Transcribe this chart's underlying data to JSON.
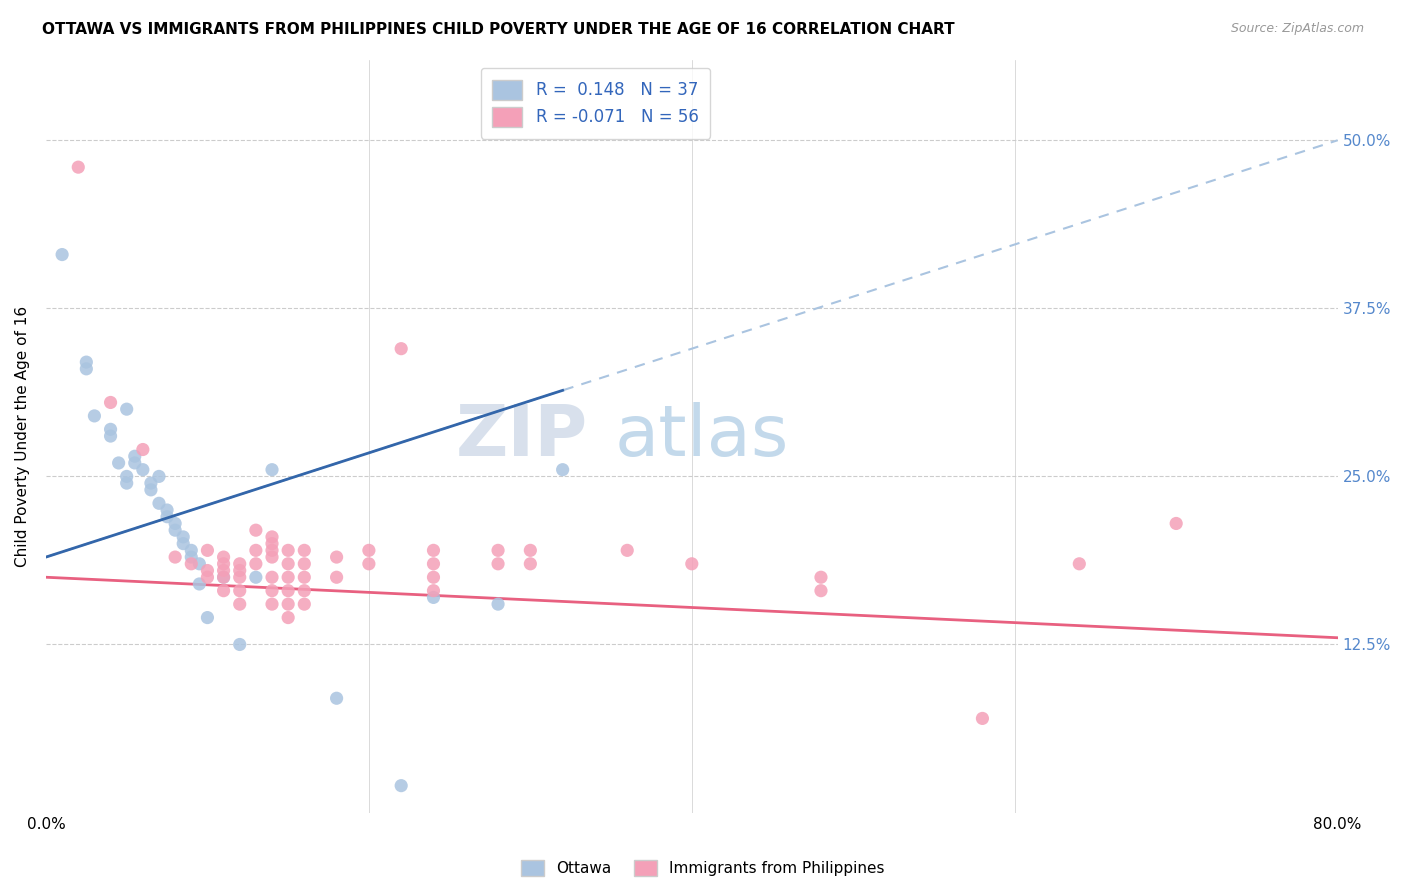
{
  "title": "OTTAWA VS IMMIGRANTS FROM PHILIPPINES CHILD POVERTY UNDER THE AGE OF 16 CORRELATION CHART",
  "source": "Source: ZipAtlas.com",
  "ylabel": "Child Poverty Under the Age of 16",
  "ytick_labels": [
    "50.0%",
    "37.5%",
    "25.0%",
    "12.5%"
  ],
  "ytick_values": [
    0.5,
    0.375,
    0.25,
    0.125
  ],
  "xlim": [
    0.0,
    0.8
  ],
  "ylim": [
    0.0,
    0.56
  ],
  "ottawa_color": "#aac4e0",
  "philippines_color": "#f4a0b8",
  "trendline_ottawa_dashed_color": "#aac4e0",
  "trendline_ottawa_solid_color": "#3366aa",
  "trendline_philippines_color": "#e86080",
  "ottawa_scatter": [
    [
      0.01,
      0.415
    ],
    [
      0.025,
      0.335
    ],
    [
      0.025,
      0.33
    ],
    [
      0.03,
      0.295
    ],
    [
      0.04,
      0.285
    ],
    [
      0.04,
      0.28
    ],
    [
      0.045,
      0.26
    ],
    [
      0.05,
      0.3
    ],
    [
      0.05,
      0.25
    ],
    [
      0.05,
      0.245
    ],
    [
      0.055,
      0.265
    ],
    [
      0.055,
      0.26
    ],
    [
      0.06,
      0.255
    ],
    [
      0.065,
      0.245
    ],
    [
      0.065,
      0.24
    ],
    [
      0.07,
      0.25
    ],
    [
      0.07,
      0.23
    ],
    [
      0.075,
      0.225
    ],
    [
      0.075,
      0.22
    ],
    [
      0.08,
      0.215
    ],
    [
      0.08,
      0.21
    ],
    [
      0.085,
      0.205
    ],
    [
      0.085,
      0.2
    ],
    [
      0.09,
      0.195
    ],
    [
      0.09,
      0.19
    ],
    [
      0.095,
      0.185
    ],
    [
      0.095,
      0.17
    ],
    [
      0.1,
      0.145
    ],
    [
      0.11,
      0.175
    ],
    [
      0.12,
      0.125
    ],
    [
      0.13,
      0.175
    ],
    [
      0.14,
      0.255
    ],
    [
      0.18,
      0.085
    ],
    [
      0.22,
      0.02
    ],
    [
      0.24,
      0.16
    ],
    [
      0.28,
      0.155
    ],
    [
      0.32,
      0.255
    ]
  ],
  "philippines_scatter": [
    [
      0.02,
      0.48
    ],
    [
      0.04,
      0.305
    ],
    [
      0.06,
      0.27
    ],
    [
      0.08,
      0.19
    ],
    [
      0.09,
      0.185
    ],
    [
      0.1,
      0.195
    ],
    [
      0.1,
      0.18
    ],
    [
      0.1,
      0.175
    ],
    [
      0.11,
      0.19
    ],
    [
      0.11,
      0.185
    ],
    [
      0.11,
      0.18
    ],
    [
      0.11,
      0.175
    ],
    [
      0.11,
      0.165
    ],
    [
      0.12,
      0.185
    ],
    [
      0.12,
      0.18
    ],
    [
      0.12,
      0.175
    ],
    [
      0.12,
      0.165
    ],
    [
      0.12,
      0.155
    ],
    [
      0.13,
      0.21
    ],
    [
      0.13,
      0.195
    ],
    [
      0.13,
      0.185
    ],
    [
      0.14,
      0.205
    ],
    [
      0.14,
      0.2
    ],
    [
      0.14,
      0.195
    ],
    [
      0.14,
      0.19
    ],
    [
      0.14,
      0.175
    ],
    [
      0.14,
      0.165
    ],
    [
      0.14,
      0.155
    ],
    [
      0.15,
      0.195
    ],
    [
      0.15,
      0.185
    ],
    [
      0.15,
      0.175
    ],
    [
      0.15,
      0.165
    ],
    [
      0.15,
      0.155
    ],
    [
      0.15,
      0.145
    ],
    [
      0.16,
      0.195
    ],
    [
      0.16,
      0.185
    ],
    [
      0.16,
      0.175
    ],
    [
      0.16,
      0.165
    ],
    [
      0.16,
      0.155
    ],
    [
      0.18,
      0.19
    ],
    [
      0.18,
      0.175
    ],
    [
      0.2,
      0.195
    ],
    [
      0.2,
      0.185
    ],
    [
      0.22,
      0.345
    ],
    [
      0.24,
      0.195
    ],
    [
      0.24,
      0.185
    ],
    [
      0.24,
      0.175
    ],
    [
      0.24,
      0.165
    ],
    [
      0.28,
      0.195
    ],
    [
      0.28,
      0.185
    ],
    [
      0.3,
      0.195
    ],
    [
      0.3,
      0.185
    ],
    [
      0.36,
      0.195
    ],
    [
      0.4,
      0.185
    ],
    [
      0.48,
      0.175
    ],
    [
      0.48,
      0.165
    ],
    [
      0.58,
      0.07
    ],
    [
      0.64,
      0.185
    ],
    [
      0.7,
      0.215
    ]
  ],
  "watermark_zip": "ZIP",
  "watermark_atlas": "atlas",
  "background_color": "#ffffff",
  "grid_color": "#cccccc"
}
